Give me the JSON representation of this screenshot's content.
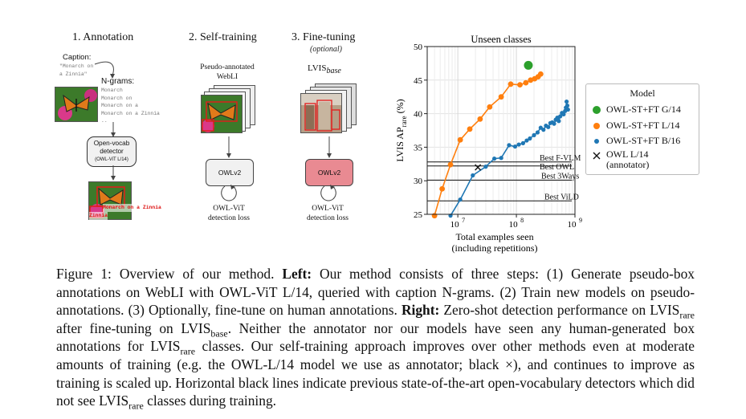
{
  "left_panel": {
    "step1": {
      "title": "1. Annotation",
      "caption_label": "Caption:",
      "caption_text": "\"Monarch on\na Zinnia\"",
      "ngrams_label": "N-grams:",
      "ngrams": "Monarch\nMonarch on\nMonarch on a\nMonarch on a Zinnia\n..",
      "detector_line1": "Open-vocab",
      "detector_line2": "detector",
      "detector_line3": "(OWL-ViT L/14)",
      "label_top": "Monarch on a Zinnia",
      "label_bottom": "Zinnia"
    },
    "step2": {
      "title": "2. Self-training",
      "data_line1": "Pseudo-annotated",
      "data_line2": "WebLI",
      "model": "OWLv2",
      "loss_line1": "OWL-ViT",
      "loss_line2": "detection loss"
    },
    "step3": {
      "title": "3. Fine-tuning",
      "subtitle": "(optional)",
      "data_main": "LVIS",
      "data_sub": "base",
      "model": "OWLv2",
      "loss_line1": "OWL-ViT",
      "loss_line2": "detection loss"
    }
  },
  "chart_data": {
    "type": "scatter",
    "title": "Unseen classes",
    "xlabel_line1": "Total examples seen",
    "xlabel_line2": "(including repetitions)",
    "ylabel_main": "LVIS AP",
    "ylabel_sub": "rare",
    "ylabel_suffix": " (%)",
    "x_scale": "log",
    "xlim": [
      3000000,
      1000000000
    ],
    "ylim": [
      25,
      50
    ],
    "x_ticks": [
      {
        "value": 10000000,
        "base": "10",
        "exp": "7"
      },
      {
        "value": 100000000,
        "base": "10",
        "exp": "8"
      },
      {
        "value": 1000000000,
        "base": "10",
        "exp": "9"
      }
    ],
    "y_ticks": [
      25,
      30,
      35,
      40,
      45,
      50
    ],
    "grid": true,
    "legend_title": "Model",
    "legend_position": "right",
    "series": [
      {
        "name": "OWL-ST+FT G/14",
        "color": "#2ca02c",
        "marker": "circle",
        "connected": false,
        "points": [
          [
            160000000,
            47.2
          ]
        ]
      },
      {
        "name": "OWL-ST+FT L/14",
        "color": "#ff7f0e",
        "marker": "circle",
        "connected": true,
        "points": [
          [
            4000000,
            24.8
          ],
          [
            5400000,
            28.8
          ],
          [
            7500000,
            32.4
          ],
          [
            11000000,
            36.1
          ],
          [
            16000000,
            37.7
          ],
          [
            24000000,
            39.2
          ],
          [
            35000000,
            41.0
          ],
          [
            55000000,
            42.5
          ],
          [
            80000000,
            44.4
          ],
          [
            115000000,
            44.3
          ],
          [
            145000000,
            44.6
          ],
          [
            175000000,
            45.0
          ],
          [
            205000000,
            45.2
          ],
          [
            235000000,
            45.5
          ],
          [
            260000000,
            45.9
          ]
        ]
      },
      {
        "name": "OWL-ST+FT B/16",
        "color": "#1f77b4",
        "marker": "circle",
        "connected": true,
        "points": [
          [
            7500000,
            24.8
          ],
          [
            11000000,
            27.2
          ],
          [
            18000000,
            30.8
          ],
          [
            30000000,
            32.1
          ],
          [
            42000000,
            33.3
          ],
          [
            55000000,
            33.4
          ],
          [
            75000000,
            35.3
          ],
          [
            95000000,
            35.1
          ],
          [
            110000000,
            35.4
          ],
          [
            130000000,
            35.6
          ],
          [
            150000000,
            36.0
          ],
          [
            170000000,
            36.3
          ],
          [
            200000000,
            36.8
          ],
          [
            230000000,
            37.2
          ],
          [
            260000000,
            37.9
          ],
          [
            290000000,
            37.6
          ],
          [
            320000000,
            38.2
          ],
          [
            350000000,
            38.0
          ],
          [
            380000000,
            38.6
          ],
          [
            410000000,
            38.7
          ],
          [
            440000000,
            38.5
          ],
          [
            470000000,
            39.1
          ],
          [
            500000000,
            39.4
          ],
          [
            530000000,
            38.9
          ],
          [
            560000000,
            39.6
          ],
          [
            600000000,
            40.1
          ],
          [
            640000000,
            39.9
          ],
          [
            680000000,
            40.4
          ],
          [
            700000000,
            40.9
          ],
          [
            720000000,
            41.8
          ],
          [
            740000000,
            41.2
          ],
          [
            760000000,
            40.6
          ]
        ]
      },
      {
        "name": "OWL L/14\n(annotator)",
        "color": "#111111",
        "marker": "x",
        "connected": false,
        "points": [
          [
            22000000,
            32.0
          ]
        ]
      }
    ],
    "baselines": [
      {
        "label": "Best F-VLM",
        "value": 32.8
      },
      {
        "label": "Best OWL",
        "value": 32.2
      },
      {
        "label": "Best 3Ways",
        "value": 30.1
      },
      {
        "label": "Best ViLD",
        "value": 27.0
      }
    ]
  },
  "caption": {
    "p1": "Figure 1: Overview of our method. ",
    "left_b": "Left:",
    "p2": " Our method consists of three steps: (1) Generate pseudo-box annotations on WebLI with OWL-ViT L/14, queried with caption N-grams. (2) Train new models on pseudo-annotations. (3) Optionally, fine-tune on human annotations. ",
    "right_b": "Right:",
    "p3": " Zero-shot detection performance on LVIS",
    "rare1": "rare",
    "p4": " after fine-tuning on LVIS",
    "base": "base",
    "p5": ". Neither the annotator nor our models have seen any human-generated box annotations for LVIS",
    "rare2": "rare",
    "p6": " classes. Our self-training approach improves over other methods even at moderate amounts of training (e.g. the OWL-L/14 model we use as annotator; black ×), and continues to improve as training is scaled up. Horizontal black lines indicate previous state-of-the-art open-vocabulary detectors which did not see LVIS",
    "rare3": "rare",
    "p7": " classes during training."
  }
}
